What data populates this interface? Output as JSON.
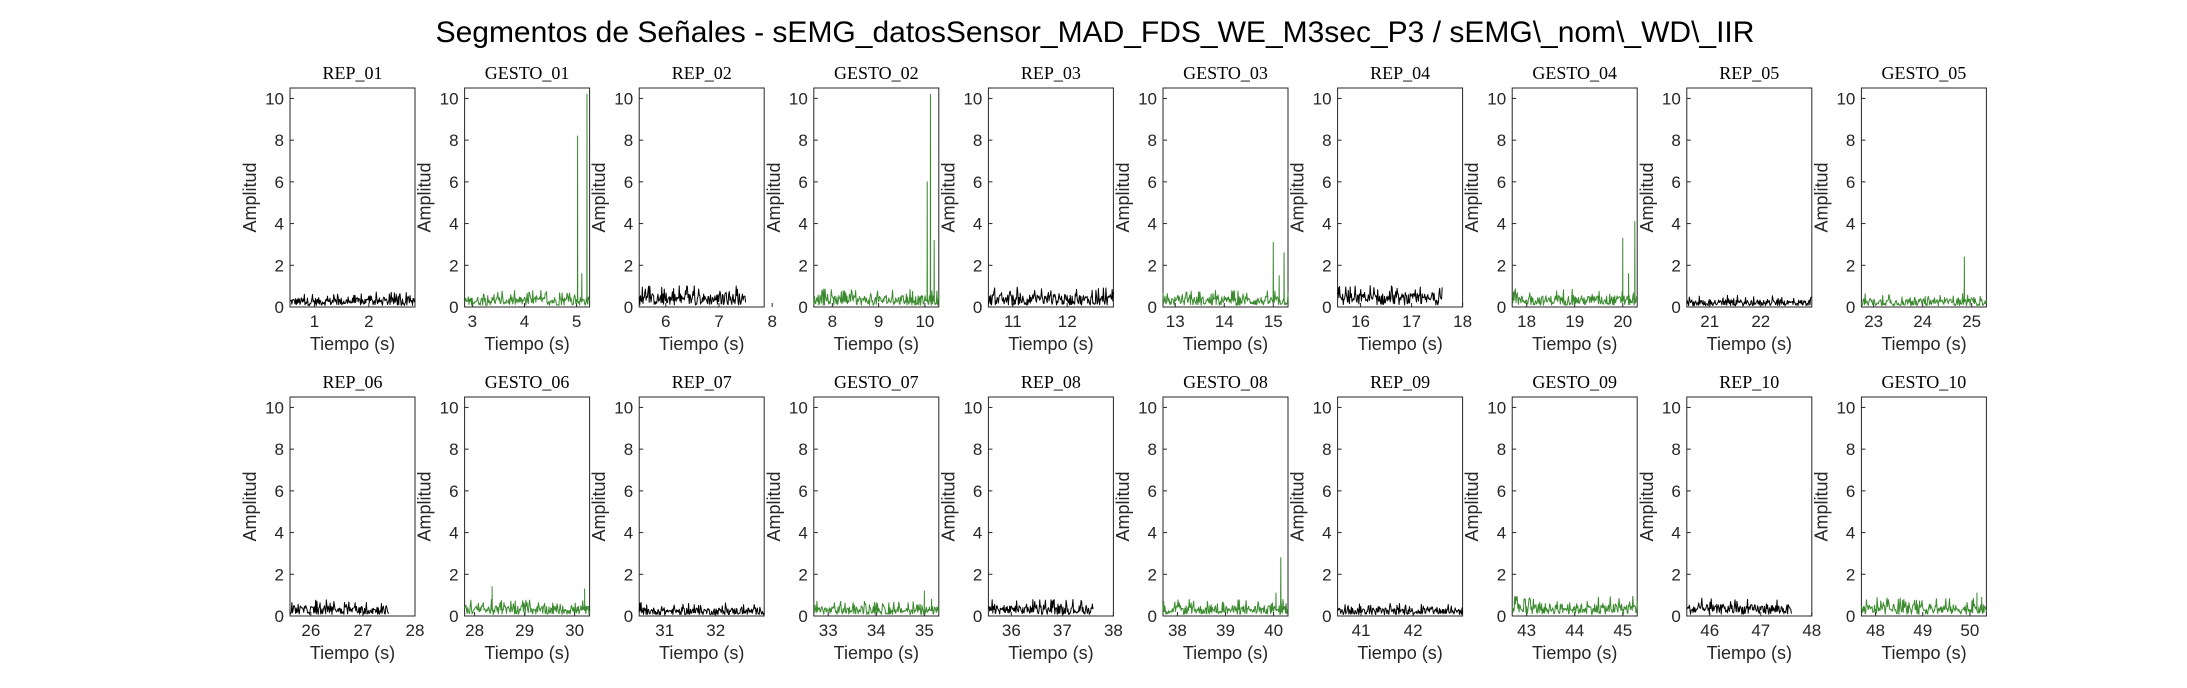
{
  "figure_title": "Segmentos de Señales - sEMG_datosSensor_MAD_FDS_WE_M3sec_P3 / sEMG\\_nom\\_WD\\_IIR",
  "colors": {
    "rep": "#000000",
    "gesto": "#3a8a2e",
    "axis": "#262626"
  },
  "chart_data": [
    {
      "type": "line",
      "title": "REP_01",
      "xlabel": "Tiempo (s)",
      "ylabel": "Amplitud",
      "xlim": [
        0.55,
        2.85
      ],
      "ylim": [
        0,
        10.5
      ],
      "xticks": [
        1,
        2
      ],
      "yticks": [
        0,
        2,
        4,
        6,
        8,
        10
      ],
      "series": [
        {
          "kind": "rep",
          "t0": 0.55,
          "t1": 2.85,
          "base": 0.45,
          "spikes": []
        }
      ]
    },
    {
      "type": "line",
      "title": "GESTO_01",
      "xlabel": "Tiempo (s)",
      "ylabel": "Amplitud",
      "xlim": [
        2.85,
        5.25
      ],
      "ylim": [
        0,
        10.5
      ],
      "xticks": [
        3,
        4,
        5
      ],
      "yticks": [
        0,
        2,
        4,
        6,
        8,
        10
      ],
      "series": [
        {
          "kind": "gesto",
          "t0": 2.85,
          "t1": 5.25,
          "base": 0.5,
          "spikes": [
            [
              5.02,
              8.2
            ],
            [
              5.1,
              1.6
            ],
            [
              5.2,
              10.2
            ]
          ]
        }
      ]
    },
    {
      "type": "line",
      "title": "REP_02",
      "xlabel": "Tiempo (s)",
      "ylabel": "Amplitud",
      "xlim": [
        5.5,
        7.85
      ],
      "ylim": [
        0,
        10.5
      ],
      "xticks": [
        6,
        7,
        8
      ],
      "yticks": [
        0,
        2,
        4,
        6,
        8,
        10
      ],
      "series": [
        {
          "kind": "rep",
          "t0": 5.5,
          "t1": 7.5,
          "base": 0.65,
          "spikes": []
        }
      ]
    },
    {
      "type": "line",
      "title": "GESTO_02",
      "xlabel": "Tiempo (s)",
      "ylabel": "Amplitud",
      "xlim": [
        7.6,
        10.3
      ],
      "ylim": [
        0,
        10.5
      ],
      "xticks": [
        8,
        9,
        10
      ],
      "yticks": [
        0,
        2,
        4,
        6,
        8,
        10
      ],
      "series": [
        {
          "kind": "gesto",
          "t0": 7.6,
          "t1": 10.3,
          "base": 0.55,
          "spikes": [
            [
              10.05,
              6.0
            ],
            [
              10.12,
              10.2
            ],
            [
              10.2,
              3.2
            ]
          ]
        }
      ]
    },
    {
      "type": "line",
      "title": "REP_03",
      "xlabel": "Tiempo (s)",
      "ylabel": "Amplitud",
      "xlim": [
        10.55,
        12.85
      ],
      "ylim": [
        0,
        10.5
      ],
      "xticks": [
        11,
        12
      ],
      "yticks": [
        0,
        2,
        4,
        6,
        8,
        10
      ],
      "series": [
        {
          "kind": "rep",
          "t0": 10.55,
          "t1": 12.85,
          "base": 0.6,
          "spikes": []
        }
      ]
    },
    {
      "type": "line",
      "title": "GESTO_03",
      "xlabel": "Tiempo (s)",
      "ylabel": "Amplitud",
      "xlim": [
        12.75,
        15.3
      ],
      "ylim": [
        0,
        10.5
      ],
      "xticks": [
        13,
        14,
        15
      ],
      "yticks": [
        0,
        2,
        4,
        6,
        8,
        10
      ],
      "series": [
        {
          "kind": "gesto",
          "t0": 12.75,
          "t1": 15.3,
          "base": 0.5,
          "spikes": [
            [
              15.0,
              3.1
            ],
            [
              15.12,
              1.5
            ],
            [
              15.22,
              2.6
            ]
          ]
        }
      ]
    },
    {
      "type": "line",
      "title": "REP_04",
      "xlabel": "Tiempo (s)",
      "ylabel": "Amplitud",
      "xlim": [
        15.55,
        18.0
      ],
      "ylim": [
        0,
        10.5
      ],
      "xticks": [
        16,
        17,
        18
      ],
      "yticks": [
        0,
        2,
        4,
        6,
        8,
        10
      ],
      "series": [
        {
          "kind": "rep",
          "t0": 15.55,
          "t1": 17.6,
          "base": 0.65,
          "spikes": []
        }
      ]
    },
    {
      "type": "line",
      "title": "GESTO_04",
      "xlabel": "Tiempo (s)",
      "ylabel": "Amplitud",
      "xlim": [
        17.7,
        20.3
      ],
      "ylim": [
        0,
        10.5
      ],
      "xticks": [
        18,
        19,
        20
      ],
      "yticks": [
        0,
        2,
        4,
        6,
        8,
        10
      ],
      "series": [
        {
          "kind": "gesto",
          "t0": 17.7,
          "t1": 20.3,
          "base": 0.55,
          "spikes": [
            [
              20.0,
              3.3
            ],
            [
              20.12,
              1.6
            ],
            [
              20.25,
              4.1
            ]
          ]
        }
      ]
    },
    {
      "type": "line",
      "title": "REP_05",
      "xlabel": "Tiempo (s)",
      "ylabel": "Amplitud",
      "xlim": [
        20.55,
        23.0
      ],
      "ylim": [
        0,
        10.5
      ],
      "xticks": [
        21,
        22
      ],
      "yticks": [
        0,
        2,
        4,
        6,
        8,
        10
      ],
      "series": [
        {
          "kind": "rep",
          "t0": 20.55,
          "t1": 23.0,
          "base": 0.35,
          "spikes": []
        }
      ]
    },
    {
      "type": "line",
      "title": "GESTO_05",
      "xlabel": "Tiempo (s)",
      "ylabel": "Amplitud",
      "xlim": [
        22.75,
        25.3
      ],
      "ylim": [
        0,
        10.5
      ],
      "xticks": [
        23,
        24,
        25
      ],
      "yticks": [
        0,
        2,
        4,
        6,
        8,
        10
      ],
      "series": [
        {
          "kind": "gesto",
          "t0": 22.75,
          "t1": 25.3,
          "base": 0.4,
          "spikes": [
            [
              24.85,
              2.4
            ]
          ]
        }
      ]
    },
    {
      "type": "line",
      "title": "REP_06",
      "xlabel": "Tiempo (s)",
      "ylabel": "Amplitud",
      "xlim": [
        25.6,
        28.0
      ],
      "ylim": [
        0,
        10.5
      ],
      "xticks": [
        26,
        27,
        28
      ],
      "yticks": [
        0,
        2,
        4,
        6,
        8,
        10
      ],
      "series": [
        {
          "kind": "rep",
          "t0": 25.6,
          "t1": 27.5,
          "base": 0.5,
          "spikes": []
        }
      ]
    },
    {
      "type": "line",
      "title": "GESTO_06",
      "xlabel": "Tiempo (s)",
      "ylabel": "Amplitud",
      "xlim": [
        27.8,
        30.3
      ],
      "ylim": [
        0,
        10.5
      ],
      "xticks": [
        28,
        29,
        30
      ],
      "yticks": [
        0,
        2,
        4,
        6,
        8,
        10
      ],
      "series": [
        {
          "kind": "gesto",
          "t0": 27.8,
          "t1": 30.3,
          "base": 0.5,
          "spikes": [
            [
              28.35,
              1.4
            ],
            [
              30.2,
              1.3
            ]
          ]
        }
      ]
    },
    {
      "type": "line",
      "title": "REP_07",
      "xlabel": "Tiempo (s)",
      "ylabel": "Amplitud",
      "xlim": [
        30.5,
        32.95
      ],
      "ylim": [
        0,
        10.5
      ],
      "xticks": [
        31,
        32
      ],
      "yticks": [
        0,
        2,
        4,
        6,
        8,
        10
      ],
      "series": [
        {
          "kind": "rep",
          "t0": 30.5,
          "t1": 32.95,
          "base": 0.4,
          "spikes": []
        }
      ]
    },
    {
      "type": "line",
      "title": "GESTO_07",
      "xlabel": "Tiempo (s)",
      "ylabel": "Amplitud",
      "xlim": [
        32.7,
        35.3
      ],
      "ylim": [
        0,
        10.5
      ],
      "xticks": [
        33,
        34,
        35
      ],
      "yticks": [
        0,
        2,
        4,
        6,
        8,
        10
      ],
      "series": [
        {
          "kind": "gesto",
          "t0": 32.7,
          "t1": 35.3,
          "base": 0.45,
          "spikes": [
            [
              35.0,
              1.2
            ],
            [
              35.15,
              0.8
            ]
          ]
        }
      ]
    },
    {
      "type": "line",
      "title": "REP_08",
      "xlabel": "Tiempo (s)",
      "ylabel": "Amplitud",
      "xlim": [
        35.55,
        38.0
      ],
      "ylim": [
        0,
        10.5
      ],
      "xticks": [
        36,
        37,
        38
      ],
      "yticks": [
        0,
        2,
        4,
        6,
        8,
        10
      ],
      "series": [
        {
          "kind": "rep",
          "t0": 35.55,
          "t1": 37.6,
          "base": 0.5,
          "spikes": []
        }
      ]
    },
    {
      "type": "line",
      "title": "GESTO_08",
      "xlabel": "Tiempo (s)",
      "ylabel": "Amplitud",
      "xlim": [
        37.7,
        40.3
      ],
      "ylim": [
        0,
        10.5
      ],
      "xticks": [
        38,
        39,
        40
      ],
      "yticks": [
        0,
        2,
        4,
        6,
        8,
        10
      ],
      "series": [
        {
          "kind": "gesto",
          "t0": 37.7,
          "t1": 40.3,
          "base": 0.5,
          "spikes": [
            [
              40.15,
              2.8
            ],
            [
              40.05,
              1.1
            ]
          ]
        }
      ]
    },
    {
      "type": "line",
      "title": "REP_09",
      "xlabel": "Tiempo (s)",
      "ylabel": "Amplitud",
      "xlim": [
        40.55,
        42.95
      ],
      "ylim": [
        0,
        10.5
      ],
      "xticks": [
        41,
        42
      ],
      "yticks": [
        0,
        2,
        4,
        6,
        8,
        10
      ],
      "series": [
        {
          "kind": "rep",
          "t0": 40.55,
          "t1": 42.95,
          "base": 0.4,
          "spikes": []
        }
      ]
    },
    {
      "type": "line",
      "title": "GESTO_09",
      "xlabel": "Tiempo (s)",
      "ylabel": "Amplitud",
      "xlim": [
        42.7,
        45.3
      ],
      "ylim": [
        0,
        10.5
      ],
      "xticks": [
        43,
        44,
        45
      ],
      "yticks": [
        0,
        2,
        4,
        6,
        8,
        10
      ],
      "series": [
        {
          "kind": "gesto",
          "t0": 42.7,
          "t1": 45.3,
          "base": 0.6,
          "spikes": []
        }
      ]
    },
    {
      "type": "line",
      "title": "REP_10",
      "xlabel": "Tiempo (s)",
      "ylabel": "Amplitud",
      "xlim": [
        45.55,
        48.0
      ],
      "ylim": [
        0,
        10.5
      ],
      "xticks": [
        46,
        47,
        48
      ],
      "yticks": [
        0,
        2,
        4,
        6,
        8,
        10
      ],
      "series": [
        {
          "kind": "rep",
          "t0": 45.55,
          "t1": 47.6,
          "base": 0.55,
          "spikes": []
        }
      ]
    },
    {
      "type": "line",
      "title": "GESTO_10",
      "xlabel": "Tiempo (s)",
      "ylabel": "Amplitud",
      "xlim": [
        47.7,
        50.35
      ],
      "ylim": [
        0,
        10.5
      ],
      "xticks": [
        48,
        49,
        50
      ],
      "yticks": [
        0,
        2,
        4,
        6,
        8,
        10
      ],
      "series": [
        {
          "kind": "gesto",
          "t0": 47.7,
          "t1": 50.35,
          "base": 0.55,
          "spikes": [
            [
              50.15,
              1.1
            ],
            [
              50.25,
              0.9
            ]
          ]
        }
      ]
    }
  ]
}
